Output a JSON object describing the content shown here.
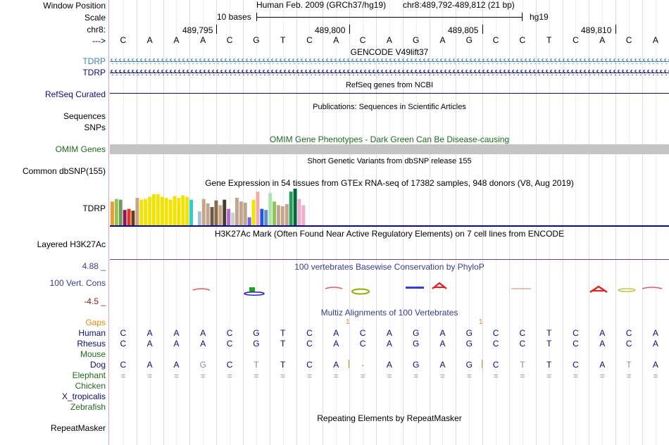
{
  "labels": {
    "window_position": "Window Position",
    "scale": "Scale",
    "chr": "chr8:",
    "arrow": "--->",
    "tdrp_1": "TDRP",
    "tdrp_2": "TDRP",
    "refseq": "RefSeq Curated",
    "sequences": "Sequences",
    "snps": "SNPs",
    "omim": "OMIM Genes",
    "dbsnp": "Common dbSNP(155)",
    "tdrp_gtex": "TDRP",
    "h3k27ac": "Layered H3K27Ac",
    "ymax": "4.88 _",
    "cons": "100 Vert. Cons",
    "ymin": "-4.5 _",
    "gaps": "Gaps",
    "human": "Human",
    "rhesus": "Rhesus",
    "mouse": "Mouse",
    "dog": "Dog",
    "elephant": "Elephant",
    "chicken": "Chicken",
    "x_tropicalis": "X_tropicalis",
    "zebrafish": "Zebrafish",
    "repeatmasker": "RepeatMasker"
  },
  "ruler": {
    "assembly": "Human Feb. 2009 (GRCh37/hg19)",
    "position": "chr8:489,792-489,812 (21 bp)",
    "scale_label": "10 bases",
    "db": "hg19",
    "ticks": [
      "489,795",
      "489,800",
      "489,805",
      "489,810"
    ]
  },
  "sequence": [
    "C",
    "A",
    "A",
    "A",
    "C",
    "G",
    "T",
    "C",
    "A",
    "C",
    "A",
    "G",
    "A",
    "G",
    "C",
    "C",
    "T",
    "C",
    "A",
    "C",
    "A"
  ],
  "tracks": {
    "gencode": "GENCODE V49lift37",
    "refseq": "RefSeq genes from NCBI",
    "pubs": "Publications: Sequences in Scientific Articles",
    "omim": "OMIM Gene Phenotypes - Dark Green Can Be Disease-causing",
    "dbsnp": "Short Genetic Variants from dbSNP release 155",
    "gtex": "Gene Expression in 54 tissues from GTEx RNA-seq of 17382 samples, 948 donors (V8, Aug 2019)",
    "h3k27ac": "H3K27Ac Mark (Often Found Near Active Regulatory Elements) on 7 cell lines from ENCODE",
    "phylop": "100 vertebrates Basewise Conservation by PhyloP",
    "multiz": "Multiz Alignments of 100 Vertebrates",
    "repeatmasker": "Repeating Elements by RepeatMasker"
  },
  "multiz": {
    "gap_marks": [
      "1",
      "1"
    ],
    "human": [
      "C",
      "A",
      "A",
      "A",
      "C",
      "G",
      "T",
      "C",
      "A",
      "C",
      "A",
      "G",
      "A",
      "G",
      "C",
      "C",
      "T",
      "C",
      "A",
      "C",
      "A"
    ],
    "rhesus": [
      "C",
      "A",
      "A",
      "A",
      "C",
      "G",
      "T",
      "C",
      "A",
      "C",
      "A",
      "G",
      "A",
      "G",
      "C",
      "C",
      "T",
      "C",
      "A",
      "C",
      "A"
    ],
    "dog": [
      "C",
      "A",
      "A",
      "G",
      "C",
      "T",
      "T",
      "C",
      "A",
      "-",
      "A",
      "G",
      "A",
      "G",
      "C",
      "T",
      "T",
      "C",
      "A",
      "T",
      "A"
    ],
    "elephant": [
      "=",
      "=",
      "=",
      "=",
      "=",
      "=",
      "=",
      "=",
      "=",
      "=",
      "=",
      "=",
      "=",
      "=",
      "=",
      "=",
      "=",
      "=",
      "=",
      "=",
      "="
    ]
  },
  "gtex_bars": [
    {
      "v": 0.65,
      "c": "#f09a37"
    },
    {
      "v": 0.72,
      "c": "#9ac24a"
    },
    {
      "v": 0.7,
      "c": "#6f9a5a"
    },
    {
      "v": 0.42,
      "c": "#8a1a5c"
    },
    {
      "v": 0.45,
      "c": "#e6332a"
    },
    {
      "v": 0.4,
      "c": "#6a3a1a"
    },
    {
      "v": 0.75,
      "c": "#c3a58b"
    },
    {
      "v": 0.7,
      "c": "#f2e300"
    },
    {
      "v": 0.72,
      "c": "#f2e300"
    },
    {
      "v": 0.78,
      "c": "#f2e300"
    },
    {
      "v": 0.85,
      "c": "#f2e300"
    },
    {
      "v": 0.85,
      "c": "#f2e300"
    },
    {
      "v": 0.78,
      "c": "#f2e300"
    },
    {
      "v": 0.75,
      "c": "#f2e300"
    },
    {
      "v": 0.7,
      "c": "#f2e300"
    },
    {
      "v": 0.8,
      "c": "#f2e300"
    },
    {
      "v": 0.75,
      "c": "#f2e300"
    },
    {
      "v": 0.82,
      "c": "#f2e300"
    },
    {
      "v": 0.78,
      "c": "#f2e300"
    },
    {
      "v": 0.7,
      "c": "#2acfcf"
    },
    {
      "v": 0.0,
      "c": "#ffffff"
    },
    {
      "v": 0.38,
      "c": "#a6c2d9"
    },
    {
      "v": 0.72,
      "c": "#c3a58b"
    },
    {
      "v": 0.6,
      "c": "#c3a58b"
    },
    {
      "v": 0.5,
      "c": "#6a5a4a"
    },
    {
      "v": 0.68,
      "c": "#8a6a4a"
    },
    {
      "v": 0.55,
      "c": "#c3a58b"
    },
    {
      "v": 0.7,
      "c": "#4a3a2a"
    },
    {
      "v": 0.45,
      "c": "#b26ad6"
    },
    {
      "v": 0.35,
      "c": "#cfcfcf"
    },
    {
      "v": 0.75,
      "c": "#c3a58b"
    },
    {
      "v": 0.65,
      "c": "#c3a58b"
    },
    {
      "v": 0.62,
      "c": "#c3a58b"
    },
    {
      "v": 0.22,
      "c": "#6a6ae6"
    },
    {
      "v": 0.7,
      "c": "#f2e300"
    },
    {
      "v": 0.92,
      "c": "#f2aaaa"
    },
    {
      "v": 0.45,
      "c": "#1a5ae6"
    },
    {
      "v": 0.42,
      "c": "#6a8ac6"
    },
    {
      "v": 0.88,
      "c": "#aae6aa"
    },
    {
      "v": 0.65,
      "c": "#8ac65a"
    },
    {
      "v": 0.55,
      "c": "#c3a58b"
    },
    {
      "v": 0.52,
      "c": "#c3a58b"
    },
    {
      "v": 0.58,
      "c": "#c3a58b"
    },
    {
      "v": 0.92,
      "c": "#2a9a5a"
    },
    {
      "v": 1.0,
      "c": "#006b3a"
    },
    {
      "v": 0.72,
      "c": "#f2aacf"
    },
    {
      "v": 0.55,
      "c": "#f2aacf"
    }
  ],
  "colors": {
    "tdrp_blue": "#3b85ad",
    "tdrp_navy": "#0c0c78",
    "omim_green": "#1e6a1e",
    "phylop_blue": "#3b3b8f",
    "gaps_orange": "#e2890b",
    "mzlabel_green": "#1e6a1e"
  }
}
